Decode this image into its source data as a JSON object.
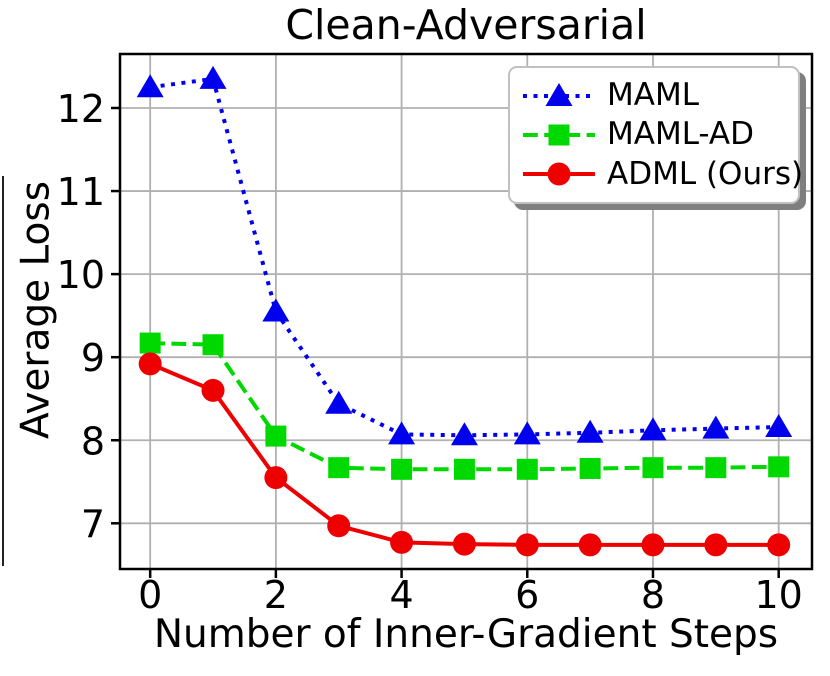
{
  "chart_data": {
    "type": "line",
    "title": "Clean-Adversarial",
    "xlabel": "Number of Inner-Gradient Steps",
    "ylabel": "Average Loss",
    "x": [
      0,
      1,
      2,
      3,
      4,
      5,
      6,
      7,
      8,
      9,
      10
    ],
    "xticks": [
      0,
      2,
      4,
      6,
      8,
      10
    ],
    "yticks": [
      7,
      8,
      9,
      10,
      11,
      12
    ],
    "xlim": [
      -0.48,
      10.53
    ],
    "ylim": [
      6.45,
      12.65
    ],
    "grid": true,
    "grid_color": "#b0b0b0",
    "legend_position": "upper right",
    "series": [
      {
        "name": "MAML",
        "color": "#0000ee",
        "linestyle": "dotted",
        "marker": "triangle-up",
        "values": [
          12.25,
          12.35,
          9.55,
          8.44,
          8.07,
          8.06,
          8.07,
          8.09,
          8.12,
          8.14,
          8.16
        ]
      },
      {
        "name": "MAML-AD",
        "color": "#00d900",
        "linestyle": "dashed",
        "marker": "square",
        "values": [
          9.17,
          9.15,
          8.05,
          7.67,
          7.65,
          7.65,
          7.65,
          7.66,
          7.67,
          7.67,
          7.68
        ]
      },
      {
        "name": "ADML (Ours)",
        "color": "#ee0000",
        "linestyle": "solid",
        "marker": "circle",
        "values": [
          8.92,
          8.6,
          7.55,
          6.97,
          6.77,
          6.75,
          6.74,
          6.74,
          6.74,
          6.74,
          6.74
        ]
      }
    ]
  }
}
